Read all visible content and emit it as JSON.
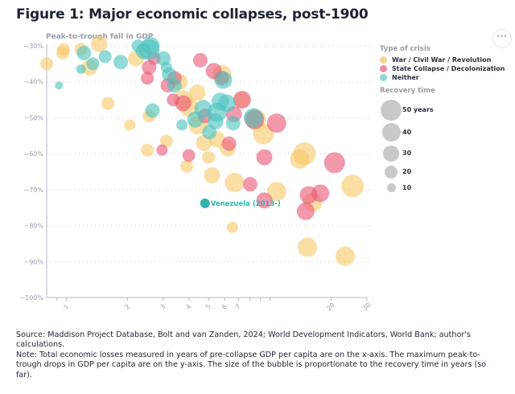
{
  "header": {
    "title": "Figure 1: Major economic collapses, post-1900",
    "more_button_label": "•••"
  },
  "legend": {
    "type_heading": "Type of crisis",
    "types": [
      {
        "label": "War / Civil War / Revolution",
        "color": "#f7c96a"
      },
      {
        "label": "State Collapse / Decolonization",
        "color": "#ea5a7d"
      },
      {
        "label": "Neither",
        "color": "#4ec3bf"
      }
    ],
    "size_heading": "Recovery time",
    "sizes": [
      {
        "label": "50 years",
        "value": 50
      },
      {
        "label": "40",
        "value": 40
      },
      {
        "label": "30",
        "value": 30
      },
      {
        "label": "20",
        "value": 20
      },
      {
        "label": "10",
        "value": 10
      }
    ]
  },
  "footnote": {
    "source": "Source: Maddison Project Database, Bolt and van Zanden, 2024; World Development Indicators, World Bank; author's calculations.",
    "note": "Note: Total economic losses measured in years of pre-collapse GDP per capita are on the x-axis. The maximum peak-to-trough drops in GDP per capita are on the y-axis. The size of the bubble is proportionate to the recovery time in years (so far)."
  },
  "chart_data": {
    "type": "scatter",
    "subtype": "bubble",
    "title": "Figure 1: Major economic collapses, post-1900",
    "ylabel": "Peak-to-trough fall in GDP",
    "xlabel": "",
    "xscale": "log",
    "xlim": [
      0.8,
      30
    ],
    "ylim": [
      -100,
      -30
    ],
    "xticks": [
      1,
      2,
      3,
      4,
      5,
      6,
      7,
      20,
      30
    ],
    "xticks_minor": [
      0.9,
      8,
      9,
      10
    ],
    "yticks": [
      -30,
      -40,
      -50,
      -60,
      -70,
      -80,
      -90,
      -100
    ],
    "ytick_labels": [
      "−30%",
      "−40%",
      "−50%",
      "−60%",
      "−70%",
      "−80%",
      "−90%",
      "−100%"
    ],
    "grid": "horizontal-dotted",
    "legend_position": "right",
    "annotation": {
      "label": "Venezuela (2013-)",
      "x": 4.8,
      "y": -73.8,
      "color": "#2fb5ae"
    },
    "categories": [
      "war",
      "state",
      "neither"
    ],
    "series": [
      {
        "name": "War / Civil War / Revolution",
        "key": "war",
        "points": [
          {
            "x": 0.8,
            "y": -35,
            "r": 8
          },
          {
            "x": 0.97,
            "y": -31,
            "r": 8
          },
          {
            "x": 0.96,
            "y": -32,
            "r": 8
          },
          {
            "x": 1.18,
            "y": -31,
            "r": 8
          },
          {
            "x": 1.45,
            "y": -29.5,
            "r": 10
          },
          {
            "x": 1.3,
            "y": -36,
            "r": 10
          },
          {
            "x": 1.6,
            "y": -46,
            "r": 8
          },
          {
            "x": 2.05,
            "y": -52,
            "r": 7
          },
          {
            "x": 2.2,
            "y": -33.5,
            "r": 10
          },
          {
            "x": 2.5,
            "y": -59,
            "r": 8
          },
          {
            "x": 2.55,
            "y": -49.5,
            "r": 8
          },
          {
            "x": 3.1,
            "y": -56.5,
            "r": 8
          },
          {
            "x": 3.6,
            "y": -40,
            "r": 10
          },
          {
            "x": 3.75,
            "y": -45,
            "r": 12
          },
          {
            "x": 3.9,
            "y": -63.5,
            "r": 8
          },
          {
            "x": 4.0,
            "y": -47,
            "r": 12
          },
          {
            "x": 4.4,
            "y": -43,
            "r": 10
          },
          {
            "x": 4.45,
            "y": -52,
            "r": 12
          },
          {
            "x": 4.75,
            "y": -57,
            "r": 10
          },
          {
            "x": 5.0,
            "y": -61,
            "r": 8
          },
          {
            "x": 5.2,
            "y": -66,
            "r": 10
          },
          {
            "x": 5.5,
            "y": -56,
            "r": 10
          },
          {
            "x": 5.8,
            "y": -38,
            "r": 12
          },
          {
            "x": 6.2,
            "y": -58.5,
            "r": 10
          },
          {
            "x": 6.55,
            "y": -80.5,
            "r": 7
          },
          {
            "x": 6.7,
            "y": -68,
            "r": 12
          },
          {
            "x": 7.3,
            "y": -45,
            "r": 10
          },
          {
            "x": 8.5,
            "y": -50.5,
            "r": 13
          },
          {
            "x": 9.3,
            "y": -54.5,
            "r": 13
          },
          {
            "x": 10.8,
            "y": -70.5,
            "r": 12
          },
          {
            "x": 14.0,
            "y": -61.5,
            "r": 12
          },
          {
            "x": 14.8,
            "y": -60,
            "r": 14
          },
          {
            "x": 15.3,
            "y": -86,
            "r": 12
          },
          {
            "x": 16.2,
            "y": -73.5,
            "r": 12
          },
          {
            "x": 23.5,
            "y": -88.5,
            "r": 12
          },
          {
            "x": 25.5,
            "y": -69,
            "r": 14
          }
        ]
      },
      {
        "name": "State Collapse / Decolonization",
        "key": "state",
        "points": [
          {
            "x": 2.55,
            "y": -36,
            "r": 9
          },
          {
            "x": 2.5,
            "y": -39,
            "r": 8
          },
          {
            "x": 2.7,
            "y": -33.5,
            "r": 8
          },
          {
            "x": 2.95,
            "y": -59,
            "r": 7
          },
          {
            "x": 3.15,
            "y": -41,
            "r": 9
          },
          {
            "x": 3.35,
            "y": -45,
            "r": 8
          },
          {
            "x": 3.4,
            "y": -39,
            "r": 9
          },
          {
            "x": 3.75,
            "y": -46,
            "r": 10
          },
          {
            "x": 4.0,
            "y": -60.5,
            "r": 8
          },
          {
            "x": 4.55,
            "y": -34,
            "r": 9
          },
          {
            "x": 4.8,
            "y": -49.5,
            "r": 9
          },
          {
            "x": 5.3,
            "y": -37,
            "r": 10
          },
          {
            "x": 5.8,
            "y": -39,
            "r": 9
          },
          {
            "x": 6.3,
            "y": -57.2,
            "r": 9
          },
          {
            "x": 6.65,
            "y": -49,
            "r": 10
          },
          {
            "x": 7.3,
            "y": -45,
            "r": 11
          },
          {
            "x": 8.4,
            "y": -50.5,
            "r": 12
          },
          {
            "x": 9.4,
            "y": -61,
            "r": 10
          },
          {
            "x": 10.8,
            "y": -51.5,
            "r": 12
          },
          {
            "x": 8.0,
            "y": -68.5,
            "r": 9
          },
          {
            "x": 9.4,
            "y": -73,
            "r": 10
          },
          {
            "x": 15.0,
            "y": -76,
            "r": 11
          },
          {
            "x": 15.5,
            "y": -71.5,
            "r": 11
          },
          {
            "x": 17.7,
            "y": -71,
            "r": 11
          },
          {
            "x": 20.8,
            "y": -62.5,
            "r": 13
          }
        ]
      },
      {
        "name": "Neither",
        "key": "neither",
        "points": [
          {
            "x": 0.92,
            "y": -41,
            "r": 5
          },
          {
            "x": 1.18,
            "y": -36.5,
            "r": 6
          },
          {
            "x": 1.22,
            "y": -32,
            "r": 9
          },
          {
            "x": 1.35,
            "y": -35,
            "r": 8
          },
          {
            "x": 1.55,
            "y": -33,
            "r": 8
          },
          {
            "x": 1.85,
            "y": -34.5,
            "r": 9
          },
          {
            "x": 2.25,
            "y": -30,
            "r": 8
          },
          {
            "x": 2.4,
            "y": -31.5,
            "r": 10
          },
          {
            "x": 2.55,
            "y": -31,
            "r": 13
          },
          {
            "x": 2.6,
            "y": -30,
            "r": 11
          },
          {
            "x": 2.65,
            "y": -48,
            "r": 9
          },
          {
            "x": 3.0,
            "y": -33.5,
            "r": 9
          },
          {
            "x": 3.1,
            "y": -36,
            "r": 7
          },
          {
            "x": 3.2,
            "y": -38,
            "r": 9
          },
          {
            "x": 3.4,
            "y": -41,
            "r": 9
          },
          {
            "x": 3.7,
            "y": -52,
            "r": 7
          },
          {
            "x": 4.3,
            "y": -50.5,
            "r": 10
          },
          {
            "x": 4.7,
            "y": -47.5,
            "r": 11
          },
          {
            "x": 5.05,
            "y": -54,
            "r": 9
          },
          {
            "x": 5.4,
            "y": -51,
            "r": 10
          },
          {
            "x": 5.5,
            "y": -48.5,
            "r": 12
          },
          {
            "x": 5.7,
            "y": -45.5,
            "r": 11
          },
          {
            "x": 5.9,
            "y": -39.5,
            "r": 11
          },
          {
            "x": 6.15,
            "y": -46,
            "r": 11
          },
          {
            "x": 6.6,
            "y": -51.5,
            "r": 9
          },
          {
            "x": 8.3,
            "y": -50,
            "r": 12
          },
          {
            "x": 4.8,
            "y": -73.8,
            "r": 6,
            "label": "Venezuela (2013-)",
            "solid": true
          }
        ]
      }
    ]
  }
}
